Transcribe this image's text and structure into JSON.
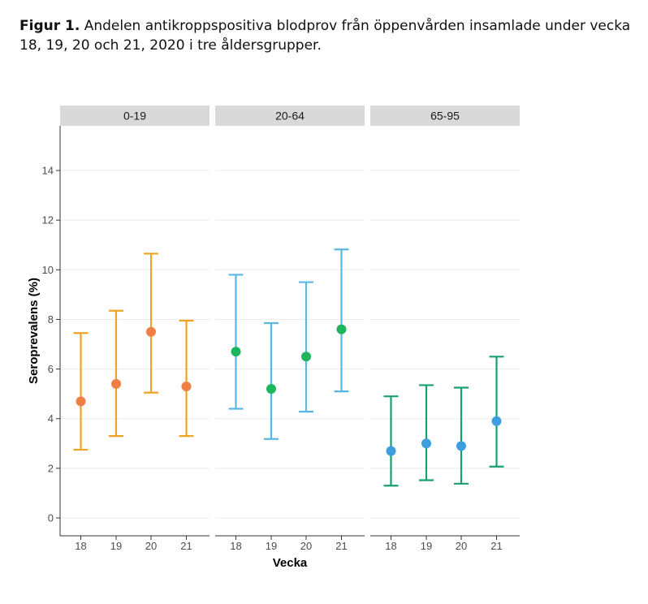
{
  "caption": {
    "label": "Figur 1.",
    "text": " Andelen antikroppspositiva blodprov från öppenvården insamlade under vecka 18, 19, 20 och 21, 2020 i tre åldersgrupper."
  },
  "chart_data": {
    "type": "scatter",
    "subtype": "point-with-errorbars-faceted",
    "xlabel": "Vecka",
    "ylabel": "Seroprevalens (%)",
    "ylim": [
      -0.8,
      15.5
    ],
    "yticks": [
      0,
      2,
      4,
      6,
      8,
      10,
      12,
      14
    ],
    "categories": [
      "18",
      "19",
      "20",
      "21"
    ],
    "grid": true,
    "facets": [
      {
        "label": "0-19",
        "point_color": "#f07f45",
        "bar_color": "#efa421",
        "values": [
          4.7,
          5.4,
          7.5,
          5.3
        ],
        "lower": [
          2.75,
          3.3,
          5.05,
          3.3
        ],
        "upper": [
          7.45,
          8.35,
          10.65,
          7.95
        ]
      },
      {
        "label": "20-64",
        "point_color": "#1db65c",
        "bar_color": "#5ab7e4",
        "values": [
          6.7,
          5.2,
          6.5,
          7.6
        ],
        "lower": [
          4.4,
          3.18,
          4.28,
          5.1
        ],
        "upper": [
          9.8,
          7.85,
          9.5,
          10.82
        ]
      },
      {
        "label": "65-95",
        "point_color": "#3d9ee0",
        "bar_color": "#16a070",
        "values": [
          2.7,
          3.0,
          2.9,
          3.9
        ],
        "lower": [
          1.3,
          1.52,
          1.38,
          2.07
        ],
        "upper": [
          4.9,
          5.35,
          5.25,
          6.5
        ]
      }
    ]
  }
}
